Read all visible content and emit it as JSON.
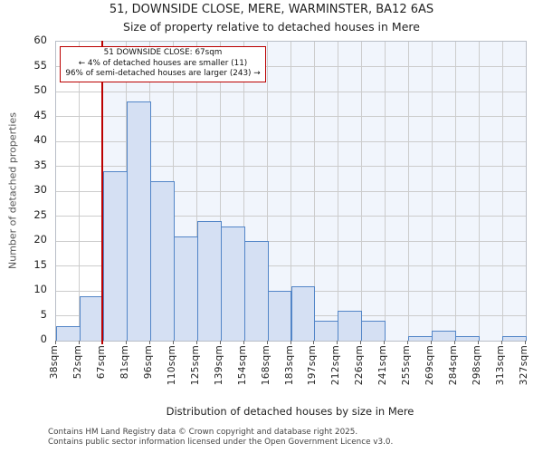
{
  "chart_data": {
    "type": "bar",
    "title": "51, DOWNSIDE CLOSE, MERE, WARMINSTER, BA12 6AS",
    "subtitle": "Size of property relative to detached houses in Mere",
    "xlabel": "Distribution of detached houses by size in Mere",
    "ylabel": "Number of detached properties",
    "bin_edge_labels": [
      "38sqm",
      "52sqm",
      "67sqm",
      "81sqm",
      "96sqm",
      "110sqm",
      "125sqm",
      "139sqm",
      "154sqm",
      "168sqm",
      "183sqm",
      "197sqm",
      "212sqm",
      "226sqm",
      "241sqm",
      "255sqm",
      "269sqm",
      "284sqm",
      "298sqm",
      "313sqm",
      "327sqm"
    ],
    "values": [
      3,
      9,
      34,
      48,
      32,
      21,
      24,
      23,
      20,
      10,
      11,
      4,
      6,
      4,
      0,
      1,
      2,
      1,
      0,
      1
    ],
    "ylim": [
      0,
      60
    ],
    "yticks": [
      0,
      5,
      10,
      15,
      20,
      25,
      30,
      35,
      40,
      45,
      50,
      55,
      60
    ],
    "grid": true,
    "legend": "none",
    "marker_line": {
      "label": "67sqm",
      "bin_edge_index": 2,
      "color": "#bb0000"
    },
    "annotation": {
      "line1": "51 DOWNSIDE CLOSE: 67sqm",
      "line2": "← 4% of detached houses are smaller (11)",
      "line3": "96% of semi-detached houses are larger (243) →",
      "border_color": "#bb0000"
    },
    "colors": {
      "bar_fill": "#d5e0f3",
      "bar_border": "#5285c7",
      "shade_region": "#f1f5fc",
      "grid_line": "#cccccc",
      "marker_red": "#bb0000"
    }
  },
  "footer": {
    "line1": "Contains HM Land Registry data © Crown copyright and database right 2025.",
    "line2": "Contains public sector information licensed under the Open Government Licence v3.0."
  }
}
